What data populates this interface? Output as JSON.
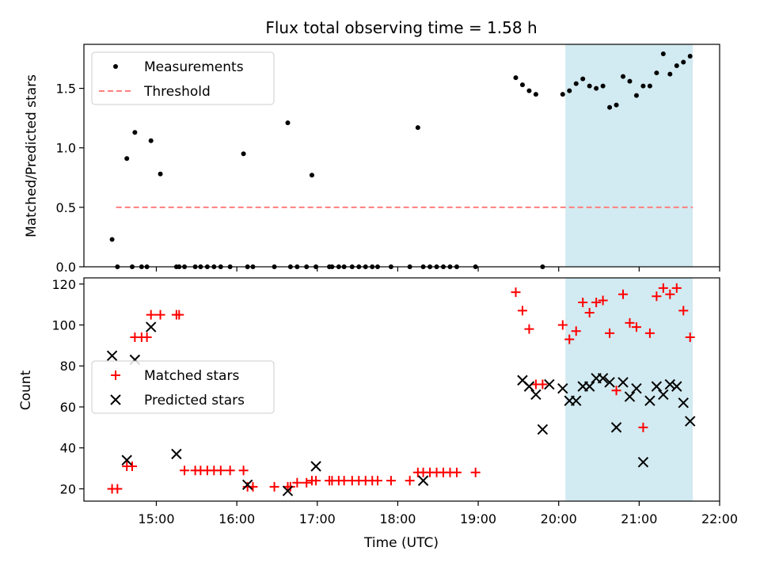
{
  "chart_data": [
    {
      "type": "scatter",
      "title": "Flux total observing time = 1.58 h",
      "xlabel": "",
      "ylabel": "Matched/Predicted stars",
      "xlim": [
        "14:06",
        "22:00"
      ],
      "ylim": [
        0,
        1.87
      ],
      "yticks": [
        0.0,
        0.5,
        1.0,
        1.5
      ],
      "ytick_labels": [
        "0.0",
        "0.5",
        "1.0",
        "1.5"
      ],
      "shaded_span": {
        "x_start": "20:05",
        "x_end": "21:40",
        "color": "#add8e6"
      },
      "threshold": {
        "name": "Threshold",
        "value": 0.5,
        "x_start": "14:30",
        "x_end": "21:40",
        "color": "#ff7f7f"
      },
      "legend": {
        "location": "upper left",
        "entries": [
          "Measurements",
          "Threshold"
        ]
      },
      "series": [
        {
          "name": "Measurements",
          "color": "#000000",
          "marker": "dot",
          "x": [
            "14:27",
            "14:31",
            "14:38",
            "14:42",
            "14:44",
            "14:49",
            "14:53",
            "14:56",
            "15:03",
            "15:15",
            "15:17",
            "15:21",
            "15:29",
            "15:33",
            "15:38",
            "15:43",
            "15:48",
            "15:55",
            "16:05",
            "16:08",
            "16:12",
            "16:28",
            "16:38",
            "16:40",
            "16:45",
            "16:52",
            "16:56",
            "16:59",
            "17:09",
            "17:11",
            "17:16",
            "17:20",
            "17:26",
            "17:31",
            "17:36",
            "17:41",
            "17:45",
            "17:55",
            "18:09",
            "18:15",
            "18:19",
            "18:24",
            "18:29",
            "18:34",
            "18:39",
            "18:44",
            "18:58",
            "19:28",
            "19:33",
            "19:38",
            "19:43",
            "19:48",
            "20:03",
            "20:08",
            "20:13",
            "20:18",
            "20:23",
            "20:28",
            "20:33",
            "20:38",
            "20:43",
            "20:48",
            "20:53",
            "20:58",
            "21:03",
            "21:08",
            "21:13",
            "21:18",
            "21:23",
            "21:28",
            "21:33",
            "21:38"
          ],
          "y": [
            0.23,
            0.0,
            0.91,
            0.0,
            1.13,
            0.0,
            0.0,
            1.06,
            0.78,
            0.0,
            0.0,
            0.0,
            0.0,
            0.0,
            0.0,
            0.0,
            0.0,
            0.0,
            0.95,
            0.0,
            0.0,
            0.0,
            1.21,
            0.0,
            0.0,
            0.0,
            0.77,
            0.0,
            0.0,
            0.0,
            0.0,
            0.0,
            0.0,
            0.0,
            0.0,
            0.0,
            0.0,
            0.0,
            0.0,
            1.17,
            0.0,
            0.0,
            0.0,
            0.0,
            0.0,
            0.0,
            0.0,
            1.59,
            1.53,
            1.48,
            1.45,
            0.0,
            1.45,
            1.48,
            1.54,
            1.58,
            1.52,
            1.5,
            1.52,
            1.34,
            1.36,
            1.6,
            1.56,
            1.44,
            1.52,
            1.52,
            1.63,
            1.79,
            1.62,
            1.69,
            1.72,
            1.77
          ]
        }
      ]
    },
    {
      "type": "scatter",
      "title": "",
      "xlabel": "Time (UTC)",
      "ylabel": "Count",
      "xlim": [
        "14:06",
        "22:00"
      ],
      "ylim": [
        14,
        123
      ],
      "yticks": [
        20,
        40,
        60,
        80,
        100,
        120
      ],
      "ytick_labels": [
        "20",
        "40",
        "60",
        "80",
        "100",
        "120"
      ],
      "xticks": [
        "15:00",
        "16:00",
        "17:00",
        "18:00",
        "19:00",
        "20:00",
        "21:00",
        "22:00"
      ],
      "xtick_labels": [
        "15:00",
        "16:00",
        "17:00",
        "18:00",
        "19:00",
        "20:00",
        "21:00",
        "22:00"
      ],
      "shaded_span": {
        "x_start": "20:05",
        "x_end": "21:40",
        "color": "#add8e6"
      },
      "legend": {
        "location": "center left",
        "entries": [
          "Matched stars",
          "Predicted stars"
        ]
      },
      "series": [
        {
          "name": "Matched stars",
          "color": "#ff0000",
          "marker": "plus",
          "x": [
            "14:27",
            "14:31",
            "14:38",
            "14:42",
            "14:44",
            "14:49",
            "14:53",
            "14:56",
            "15:03",
            "15:15",
            "15:17",
            "15:21",
            "15:29",
            "15:33",
            "15:38",
            "15:43",
            "15:48",
            "15:55",
            "16:05",
            "16:08",
            "16:12",
            "16:28",
            "16:38",
            "16:40",
            "16:45",
            "16:52",
            "16:56",
            "16:59",
            "17:09",
            "17:11",
            "17:16",
            "17:20",
            "17:26",
            "17:31",
            "17:36",
            "17:41",
            "17:45",
            "17:55",
            "18:09",
            "18:15",
            "18:19",
            "18:24",
            "18:29",
            "18:34",
            "18:39",
            "18:44",
            "18:58",
            "19:28",
            "19:33",
            "19:38",
            "19:43",
            "19:48",
            "20:03",
            "20:08",
            "20:13",
            "20:18",
            "20:23",
            "20:28",
            "20:33",
            "20:38",
            "20:43",
            "20:48",
            "20:53",
            "20:58",
            "21:03",
            "21:08",
            "21:13",
            "21:18",
            "21:23",
            "21:28",
            "21:33",
            "21:38"
          ],
          "y": [
            20,
            20,
            31,
            31,
            94,
            94,
            94,
            105,
            105,
            105,
            105,
            29,
            29,
            29,
            29,
            29,
            29,
            29,
            29,
            21,
            21,
            21,
            21,
            21,
            23,
            23,
            24,
            24,
            24,
            24,
            24,
            24,
            24,
            24,
            24,
            24,
            24,
            24,
            24,
            28,
            28,
            28,
            28,
            28,
            28,
            28,
            28,
            116,
            107,
            98,
            71,
            71,
            100,
            93,
            97,
            111,
            106,
            111,
            112,
            96,
            68,
            115,
            101,
            99,
            50,
            96,
            114,
            118,
            115,
            118,
            107,
            94
          ]
        },
        {
          "name": "Predicted stars",
          "color": "#000000",
          "marker": "x",
          "x": [
            "14:27",
            "14:38",
            "14:44",
            "14:56",
            "15:15",
            "16:08",
            "16:38",
            "16:59",
            "18:19",
            "19:33",
            "19:38",
            "19:43",
            "19:48",
            "19:53",
            "20:03",
            "20:08",
            "20:13",
            "20:18",
            "20:23",
            "20:28",
            "20:33",
            "20:38",
            "20:43",
            "20:48",
            "20:53",
            "20:58",
            "21:03",
            "21:08",
            "21:13",
            "21:18",
            "21:23",
            "21:28",
            "21:33",
            "21:38"
          ],
          "y": [
            85,
            34,
            83,
            99,
            37,
            22,
            19,
            31,
            24,
            73,
            70,
            66,
            49,
            71,
            69,
            63,
            63,
            70,
            70,
            74,
            74,
            72,
            50,
            72,
            65,
            69,
            33,
            63,
            70,
            66,
            71,
            70,
            62,
            53
          ]
        }
      ]
    }
  ]
}
